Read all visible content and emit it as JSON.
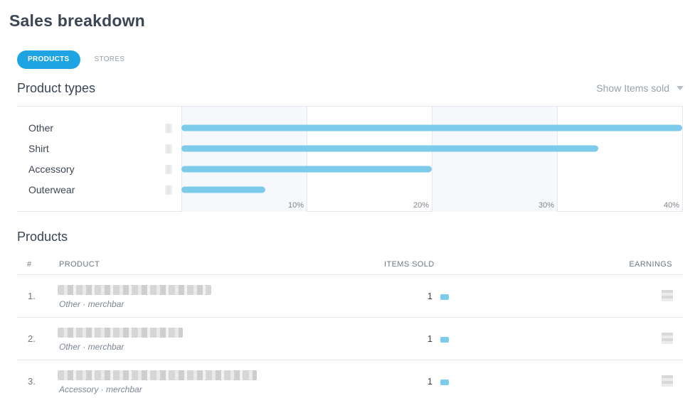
{
  "page": {
    "title": "Sales breakdown"
  },
  "tabs": [
    {
      "label": "PRODUCTS",
      "active": true
    },
    {
      "label": "STORES",
      "active": false
    }
  ],
  "product_types": {
    "title": "Product types",
    "show_dropdown": {
      "label": "Show Items sold"
    }
  },
  "chart_data": {
    "type": "bar",
    "orientation": "horizontal",
    "categories": [
      "Other",
      "Shirt",
      "Accessory",
      "Outerwear"
    ],
    "values": [
      40,
      33.3,
      20,
      6.7
    ],
    "unit": "%",
    "xlim": [
      0,
      40
    ],
    "ticks": [
      "10%",
      "20%",
      "30%",
      "40%"
    ],
    "tick_values": [
      10,
      20,
      30,
      40
    ],
    "grid": true,
    "bar_color": "#7ccbeb"
  },
  "products": {
    "title": "Products",
    "columns": {
      "num": "#",
      "product": "PRODUCT",
      "items_sold": "ITEMS SOLD",
      "earnings": "EARNINGS"
    },
    "rows": [
      {
        "rank": "1.",
        "subtitle": "Other · merchbar",
        "items_sold": "1"
      },
      {
        "rank": "2.",
        "subtitle": "Other · merchbar",
        "items_sold": "1"
      },
      {
        "rank": "3.",
        "subtitle": "Accessory · merchbar",
        "items_sold": "1"
      }
    ]
  },
  "colors": {
    "accent": "#1ea4e3",
    "bar": "#7ccbeb",
    "grid_band": "#f7f8fb"
  }
}
